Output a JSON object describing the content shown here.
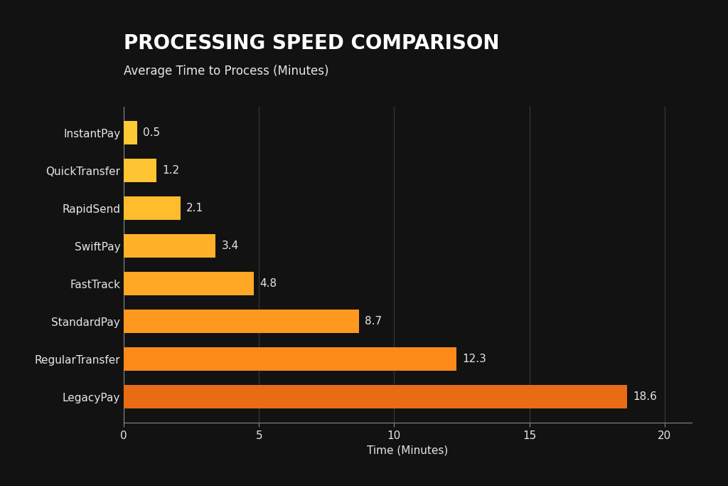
{
  "chart_data": {
    "type": "bar",
    "orientation": "horizontal",
    "title": "PROCESSING SPEED COMPARISON",
    "subtitle": "Average Time to Process (Minutes)",
    "x_label": "Time (Minutes)",
    "categories": [
      "InstantPay",
      "QuickTransfer",
      "RapidSend",
      "SwiftPay",
      "FastTrack",
      "StandardPay",
      "RegularTransfer",
      "LegacyPay"
    ],
    "values": [
      0.5,
      1.2,
      2.1,
      3.4,
      4.8,
      8.7,
      12.3,
      18.6
    ],
    "colors": [
      "#FFC934",
      "#FFC431",
      "#FFBC2D",
      "#FFB229",
      "#FFA825",
      "#FF981F",
      "#FB8A1B",
      "#E86C14"
    ],
    "xlim": [
      0,
      21
    ],
    "xticks": [
      0,
      5,
      10,
      15,
      20
    ],
    "grid": true,
    "data_labels": true
  }
}
